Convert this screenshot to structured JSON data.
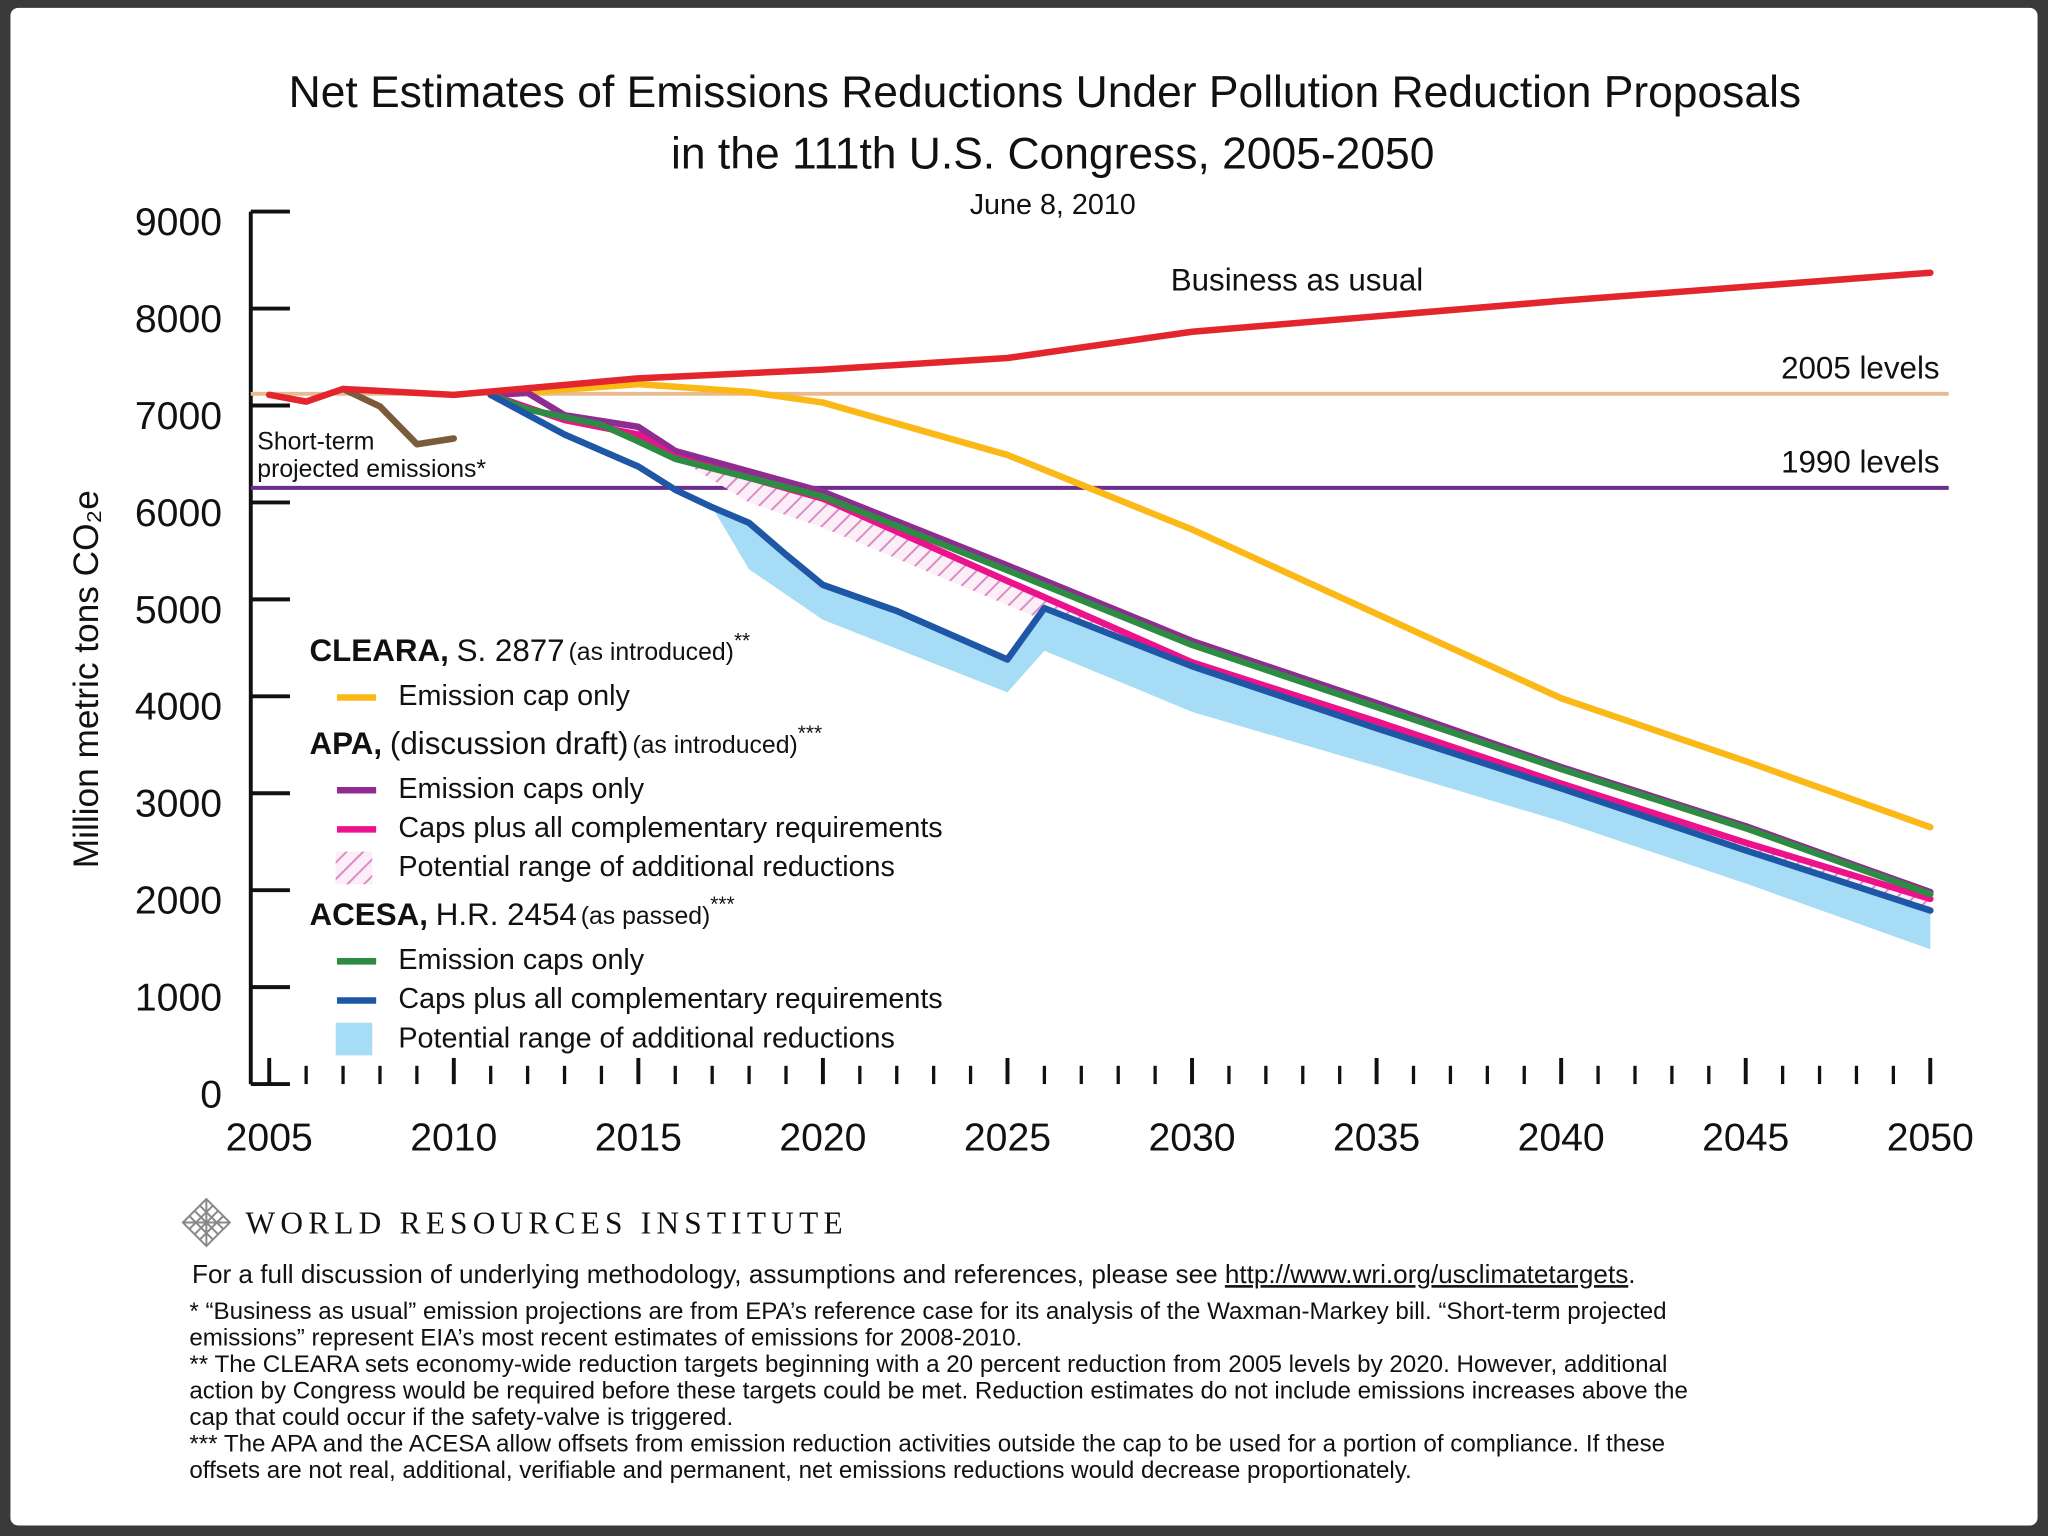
{
  "chart_data": {
    "type": "line",
    "title": [
      "Net Estimates of Emissions Reductions Under Pollution Reduction Proposals",
      "in the 111th U.S. Congress, 2005-2050"
    ],
    "subtitle": "June 8, 2010",
    "y_label": "Million metric tons CO₂e",
    "xlim": [
      2004.5,
      2050.5
    ],
    "xticks": [
      2005,
      2010,
      2015,
      2020,
      2025,
      2030,
      2035,
      2040,
      2045,
      2050
    ],
    "xminorticks": [
      2005,
      2006,
      2007,
      2008,
      2009,
      2010,
      2011,
      2012,
      2013,
      2014,
      2015,
      2016,
      2017,
      2018,
      2019,
      2020,
      2021,
      2022,
      2023,
      2024,
      2025,
      2026,
      2027,
      2028,
      2029,
      2030,
      2031,
      2032,
      2033,
      2034,
      2035,
      2036,
      2037,
      2038,
      2039,
      2040,
      2041,
      2042,
      2043,
      2044,
      2045,
      2046,
      2047,
      2048,
      2049,
      2050
    ],
    "ylim": [
      0,
      9000
    ],
    "yticks": [
      0,
      1000,
      2000,
      3000,
      4000,
      5000,
      6000,
      7000,
      8000,
      9000
    ],
    "reference_lines": [
      {
        "label": "2005 levels",
        "value": 7120,
        "color": "#e9b98f"
      },
      {
        "label": "1990 levels",
        "value": 6150,
        "color": "#6b2d90"
      }
    ],
    "series": [
      {
        "name": "Business as usual",
        "color": "#e3262e",
        "x": [
          2005,
          2006,
          2007,
          2010,
          2015,
          2020,
          2025,
          2030,
          2040,
          2050
        ],
        "values": [
          7110,
          7040,
          7170,
          7110,
          7280,
          7370,
          7490,
          7760,
          8080,
          8370
        ]
      },
      {
        "name": [
          "Short-term",
          "projected emissions*"
        ],
        "color": "#7a5b3a",
        "x": [
          2007,
          2008,
          2009,
          2010
        ],
        "values": [
          7170,
          6990,
          6600,
          6660
        ]
      }
    ],
    "groups": [
      {
        "title": "CLEARA,",
        "bill": "S. 2877",
        "note": "(as introduced)",
        "mark": "**",
        "series": [
          {
            "name": "Emission cap only",
            "kind": "line",
            "color": "#fbb917",
            "x": [
              2011,
              2015,
              2018,
              2020,
              2025,
              2030,
              2035,
              2040,
              2045,
              2050
            ],
            "values": [
              7110,
              7220,
              7140,
              7030,
              6490,
              5720,
              4850,
              3980,
              3330,
              2650
            ]
          }
        ]
      },
      {
        "title": "APA,",
        "bill": "(discussion draft)",
        "note": "(as introduced)",
        "mark": "***",
        "series": [
          {
            "name": "Emission caps only",
            "kind": "line",
            "color": "#8e2c91",
            "x": [
              2011,
              2012,
              2013,
              2015,
              2016,
              2020,
              2025,
              2030,
              2035,
              2040,
              2045,
              2050
            ],
            "values": [
              7110,
              7130,
              6900,
              6780,
              6530,
              6110,
              5350,
              4570,
              3930,
              3270,
              2660,
              1980
            ]
          },
          {
            "name": "Caps plus all complementary requirements",
            "kind": "line",
            "color": "#ec128c",
            "x": [
              2011,
              2013,
              2015,
              2016,
              2020,
              2025,
              2030,
              2035,
              2040,
              2045,
              2050
            ],
            "values": [
              7110,
              6850,
              6700,
              6470,
              6040,
              5190,
              4350,
              3740,
              3100,
              2490,
              1910
            ]
          },
          {
            "name": "Potential range of additional reductions",
            "kind": "range",
            "pattern": "hatch",
            "color": "#d98cc6",
            "x": [
              2016,
              2018,
              2020,
              2025,
              2030,
              2035,
              2040,
              2045,
              2050
            ],
            "low": [
              6470,
              6000,
              5740,
              4940,
              4150,
              3570,
              2990,
              2340,
              1680
            ],
            "high": [
              6470,
              6260,
              6040,
              5190,
              4350,
              3740,
              3100,
              2490,
              1910
            ]
          }
        ]
      },
      {
        "title": "ACESA,",
        "bill": "H.R. 2454",
        "note": "(as passed)",
        "mark": "***",
        "series": [
          {
            "name": "Emission caps only",
            "kind": "line",
            "color": "#2e8b43",
            "x": [
              2011,
              2012,
              2014,
              2015,
              2016,
              2020,
              2025,
              2030,
              2035,
              2040,
              2045,
              2050
            ],
            "values": [
              7110,
              6960,
              6800,
              6630,
              6450,
              6060,
              5300,
              4530,
              3890,
              3250,
              2640,
              1960
            ]
          },
          {
            "name": "Caps plus all complementary requirements",
            "kind": "line",
            "color": "#1d57a5",
            "x": [
              2011,
              2013,
              2015,
              2016,
              2017,
              2018,
              2019,
              2020,
              2022,
              2025,
              2026,
              2030,
              2035,
              2040,
              2045,
              2050
            ],
            "values": [
              7110,
              6700,
              6370,
              6130,
              5950,
              5790,
              5460,
              5150,
              4880,
              4380,
              4910,
              4310,
              3670,
              3050,
              2410,
              1790
            ]
          },
          {
            "name": "Potential range of additional reductions",
            "kind": "range",
            "pattern": "solid",
            "color": "#a6dcf5",
            "x": [
              2017,
              2018,
              2020,
              2025,
              2026,
              2030,
              2035,
              2040,
              2045,
              2050
            ],
            "low": [
              5950,
              5310,
              4790,
              4040,
              4470,
              3840,
              3280,
              2710,
              2070,
              1390
            ],
            "high": [
              5950,
              5790,
              5150,
              4380,
              4910,
              4310,
              3670,
              3050,
              2410,
              1790
            ]
          }
        ]
      }
    ]
  },
  "footer": {
    "org": "WORLD RESOURCES INSTITUTE",
    "intro": "For a full discussion of underlying methodology, assumptions and references, please see",
    "link": "http://www.wri.org/usclimatetargets",
    "end": ".",
    "notes": [
      [
        "* “Business as usual” emission projections are from EPA’s reference  case for its analysis of the Waxman-Markey bill. “Short-term projected",
        "emissions” represent EIA’s most recent  estimates of emissions for 2008-2010."
      ],
      [
        "** The CLEARA sets economy-wide reduction targets beginning with a 20 percent reduction from 2005 levels by 2020.  However, additional",
        "action by Congress would be required before these targets could be met.  Reduction estimates do not include emissions increases above the",
        "cap that could occur if the safety-valve is triggered."
      ],
      [
        "*** The APA and the ACESA allow offsets from emission reduction activities outside the cap to be used for a portion of compliance.  If these",
        "offsets are not real, additional, verifiable and permanent, net emissions reductions would decrease proportionately."
      ]
    ]
  }
}
